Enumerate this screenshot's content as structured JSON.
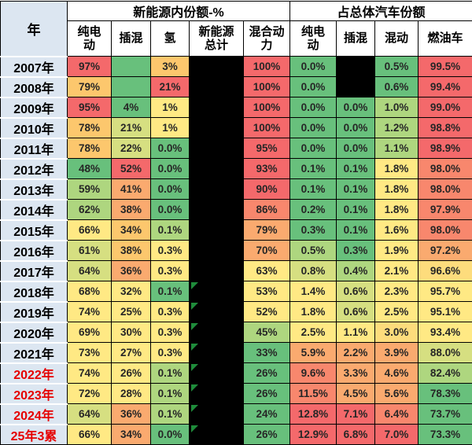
{
  "palette": {
    "red": "#F4696B",
    "redOrange": "#F8876D",
    "orange": "#FAAA6F",
    "amber": "#FCC76D",
    "yellow": "#FFE984",
    "yellowOrange": "#FDDC7C",
    "yellowGreen": "#D6DF81",
    "lightGreen": "#AED67F",
    "green": "#68C07C",
    "black": "#000000",
    "header_bg": "#DCE6F1",
    "year_red_text": "#E60000",
    "flag_green": "#1F8C3B"
  },
  "chart_data": {
    "type": "table",
    "title": "",
    "corner_header": "年",
    "group_headers": [
      {
        "label": "新能源内份额-%",
        "colspan": 5
      },
      {
        "label": "占总体汽车份额",
        "colspan": 4
      }
    ],
    "columns": [
      {
        "key": "bev-in-nev",
        "label": "纯电\n动"
      },
      {
        "key": "phev-in-nev",
        "label": "插混"
      },
      {
        "key": "h2-in-nev",
        "label": "氢"
      },
      {
        "key": "nev-total",
        "label": "新能源\n总计"
      },
      {
        "key": "hev-share",
        "label": "混合动\n力"
      },
      {
        "key": "bev-of-total",
        "label": "纯电\n动"
      },
      {
        "key": "phev-of-total",
        "label": "插混"
      },
      {
        "key": "hv-of-total",
        "label": "混动"
      },
      {
        "key": "ice-of-total",
        "label": "燃油车"
      }
    ],
    "rows": [
      {
        "year": "2007年",
        "year_red": false,
        "flag": false,
        "cells": [
          [
            "97%",
            "red"
          ],
          [
            "",
            "green"
          ],
          [
            "3%",
            "amber"
          ],
          [
            "",
            "black"
          ],
          [
            "100%",
            "red"
          ],
          [
            "0.0%",
            "green"
          ],
          [
            "",
            "black"
          ],
          [
            "0.5%",
            "green"
          ],
          [
            "99.5%",
            "red"
          ]
        ]
      },
      {
        "year": "2008年",
        "year_red": false,
        "flag": false,
        "cells": [
          [
            "79%",
            "amber"
          ],
          [
            "",
            "green"
          ],
          [
            "21%",
            "red"
          ],
          [
            "",
            "black"
          ],
          [
            "100%",
            "red"
          ],
          [
            "0.0%",
            "green"
          ],
          [
            "",
            "black"
          ],
          [
            "0.6%",
            "green"
          ],
          [
            "99.4%",
            "red"
          ]
        ]
      },
      {
        "year": "2009年",
        "year_red": false,
        "flag": false,
        "cells": [
          [
            "95%",
            "red"
          ],
          [
            "4%",
            "green"
          ],
          [
            "1%",
            "yellow"
          ],
          [
            "",
            "black"
          ],
          [
            "100%",
            "red"
          ],
          [
            "0.0%",
            "green"
          ],
          [
            "0.0%",
            "green"
          ],
          [
            "1.0%",
            "lightGreen"
          ],
          [
            "99.0%",
            "red"
          ]
        ]
      },
      {
        "year": "2010年",
        "year_red": false,
        "flag": false,
        "cells": [
          [
            "78%",
            "amber"
          ],
          [
            "21%",
            "yellowGreen"
          ],
          [
            "1%",
            "yellow"
          ],
          [
            "",
            "black"
          ],
          [
            "100%",
            "red"
          ],
          [
            "0.0%",
            "green"
          ],
          [
            "0.0%",
            "green"
          ],
          [
            "1.2%",
            "lightGreen"
          ],
          [
            "98.8%",
            "red"
          ]
        ]
      },
      {
        "year": "2011年",
        "year_red": false,
        "flag": false,
        "cells": [
          [
            "78%",
            "amber"
          ],
          [
            "22%",
            "yellowGreen"
          ],
          [
            "0.0%",
            "green"
          ],
          [
            "",
            "black"
          ],
          [
            "95%",
            "red"
          ],
          [
            "0.0%",
            "green"
          ],
          [
            "0.0%",
            "green"
          ],
          [
            "1.1%",
            "lightGreen"
          ],
          [
            "98.9%",
            "red"
          ]
        ]
      },
      {
        "year": "2012年",
        "year_red": false,
        "flag": false,
        "cells": [
          [
            "48%",
            "green"
          ],
          [
            "52%",
            "red"
          ],
          [
            "0.0%",
            "green"
          ],
          [
            "",
            "black"
          ],
          [
            "93%",
            "red"
          ],
          [
            "0.1%",
            "green"
          ],
          [
            "0.1%",
            "green"
          ],
          [
            "1.8%",
            "yellow"
          ],
          [
            "98.0%",
            "redOrange"
          ]
        ]
      },
      {
        "year": "2013年",
        "year_red": false,
        "flag": false,
        "cells": [
          [
            "59%",
            "lightGreen"
          ],
          [
            "41%",
            "orange"
          ],
          [
            "0.0%",
            "green"
          ],
          [
            "",
            "black"
          ],
          [
            "90%",
            "red"
          ],
          [
            "0.1%",
            "green"
          ],
          [
            "0.1%",
            "green"
          ],
          [
            "1.8%",
            "yellow"
          ],
          [
            "98.0%",
            "redOrange"
          ]
        ]
      },
      {
        "year": "2014年",
        "year_red": false,
        "flag": false,
        "cells": [
          [
            "62%",
            "lightGreen"
          ],
          [
            "38%",
            "orange"
          ],
          [
            "0.0%",
            "green"
          ],
          [
            "",
            "black"
          ],
          [
            "86%",
            "redOrange"
          ],
          [
            "0.2%",
            "green"
          ],
          [
            "0.1%",
            "green"
          ],
          [
            "1.8%",
            "yellow"
          ],
          [
            "97.9%",
            "redOrange"
          ]
        ]
      },
      {
        "year": "2015年",
        "year_red": false,
        "flag": false,
        "cells": [
          [
            "66%",
            "yellow"
          ],
          [
            "34%",
            "amber"
          ],
          [
            "0.1%",
            "lightGreen"
          ],
          [
            "",
            "black"
          ],
          [
            "79%",
            "orange"
          ],
          [
            "0.3%",
            "green"
          ],
          [
            "0.1%",
            "green"
          ],
          [
            "1.6%",
            "yellow"
          ],
          [
            "98.0%",
            "redOrange"
          ]
        ]
      },
      {
        "year": "2016年",
        "year_red": false,
        "flag": false,
        "cells": [
          [
            "61%",
            "yellowGreen"
          ],
          [
            "38%",
            "amber"
          ],
          [
            "0.3%",
            "yellow"
          ],
          [
            "",
            "black"
          ],
          [
            "70%",
            "orange"
          ],
          [
            "0.5%",
            "lightGreen"
          ],
          [
            "0.3%",
            "green"
          ],
          [
            "1.9%",
            "yellow"
          ],
          [
            "97.2%",
            "orange"
          ]
        ]
      },
      {
        "year": "2017年",
        "year_red": false,
        "flag": false,
        "cells": [
          [
            "64%",
            "yellowGreen"
          ],
          [
            "36%",
            "orange"
          ],
          [
            "0.3%",
            "yellow"
          ],
          [
            "",
            "black"
          ],
          [
            "63%",
            "yellow"
          ],
          [
            "0.8%",
            "yellowGreen"
          ],
          [
            "0.4%",
            "lightGreen"
          ],
          [
            "2.1%",
            "yellow"
          ],
          [
            "96.6%",
            "yellowOrange"
          ]
        ]
      },
      {
        "year": "2018年",
        "year_red": false,
        "flag": true,
        "cells": [
          [
            "68%",
            "yellow"
          ],
          [
            "32%",
            "yellow"
          ],
          [
            "0.1%",
            "green"
          ],
          [
            "",
            "black"
          ],
          [
            "53%",
            "yellow"
          ],
          [
            "1.4%",
            "yellow"
          ],
          [
            "0.6%",
            "yellowGreen"
          ],
          [
            "2.3%",
            "yellow"
          ],
          [
            "95.7%",
            "yellow"
          ]
        ]
      },
      {
        "year": "2019年",
        "year_red": false,
        "flag": true,
        "cells": [
          [
            "74%",
            "yellow"
          ],
          [
            "25%",
            "yellow"
          ],
          [
            "0.3%",
            "yellow"
          ],
          [
            "",
            "black"
          ],
          [
            "52%",
            "yellow"
          ],
          [
            "1.8%",
            "yellow"
          ],
          [
            "0.6%",
            "yellowGreen"
          ],
          [
            "2.5%",
            "yellow"
          ],
          [
            "95.1%",
            "yellow"
          ]
        ]
      },
      {
        "year": "2020年",
        "year_red": false,
        "flag": true,
        "cells": [
          [
            "69%",
            "yellow"
          ],
          [
            "30%",
            "yellow"
          ],
          [
            "0.3%",
            "yellow"
          ],
          [
            "",
            "black"
          ],
          [
            "45%",
            "lightGreen"
          ],
          [
            "2.5%",
            "yellow"
          ],
          [
            "1.1%",
            "yellow"
          ],
          [
            "3.0%",
            "yellowOrange"
          ],
          [
            "93.4%",
            "yellow"
          ]
        ]
      },
      {
        "year": "2021年",
        "year_red": false,
        "flag": true,
        "cells": [
          [
            "73%",
            "yellow"
          ],
          [
            "27%",
            "yellow"
          ],
          [
            "0.3%",
            "yellow"
          ],
          [
            "",
            "black"
          ],
          [
            "33%",
            "green"
          ],
          [
            "5.9%",
            "orange"
          ],
          [
            "2.2%",
            "orange"
          ],
          [
            "3.9%",
            "orange"
          ],
          [
            "88.0%",
            "yellowGreen"
          ]
        ]
      },
      {
        "year": "2022年",
        "year_red": true,
        "flag": true,
        "cells": [
          [
            "74%",
            "yellow"
          ],
          [
            "26%",
            "yellow"
          ],
          [
            "0.1%",
            "lightGreen"
          ],
          [
            "",
            "black"
          ],
          [
            "26%",
            "green"
          ],
          [
            "9.6%",
            "redOrange"
          ],
          [
            "3.3%",
            "orange"
          ],
          [
            "4.6%",
            "orange"
          ],
          [
            "82.4%",
            "lightGreen"
          ]
        ]
      },
      {
        "year": "2023年",
        "year_red": true,
        "flag": true,
        "cells": [
          [
            "72%",
            "yellow"
          ],
          [
            "28%",
            "yellow"
          ],
          [
            "0.1%",
            "lightGreen"
          ],
          [
            "",
            "black"
          ],
          [
            "26%",
            "green"
          ],
          [
            "11.5%",
            "redOrange"
          ],
          [
            "4.5%",
            "orange"
          ],
          [
            "5.6%",
            "orange"
          ],
          [
            "78.3%",
            "green"
          ]
        ]
      },
      {
        "year": "2024年",
        "year_red": true,
        "flag": true,
        "cells": [
          [
            "64%",
            "yellowGreen"
          ],
          [
            "36%",
            "orange"
          ],
          [
            "0.1%",
            "lightGreen"
          ],
          [
            "",
            "black"
          ],
          [
            "24%",
            "green"
          ],
          [
            "12.8%",
            "red"
          ],
          [
            "7.1%",
            "red"
          ],
          [
            "6.4%",
            "redOrange"
          ],
          [
            "73.7%",
            "green"
          ]
        ]
      },
      {
        "year": "25年3累",
        "year_red": true,
        "flag": true,
        "cells": [
          [
            "66%",
            "yellow"
          ],
          [
            "34%",
            "orange"
          ],
          [
            "0.0%",
            "green"
          ],
          [
            "",
            "black"
          ],
          [
            "26%",
            "green"
          ],
          [
            "12.9%",
            "red"
          ],
          [
            "6.8%",
            "red"
          ],
          [
            "7.0%",
            "red"
          ],
          [
            "73.3%",
            "green"
          ]
        ]
      }
    ]
  }
}
